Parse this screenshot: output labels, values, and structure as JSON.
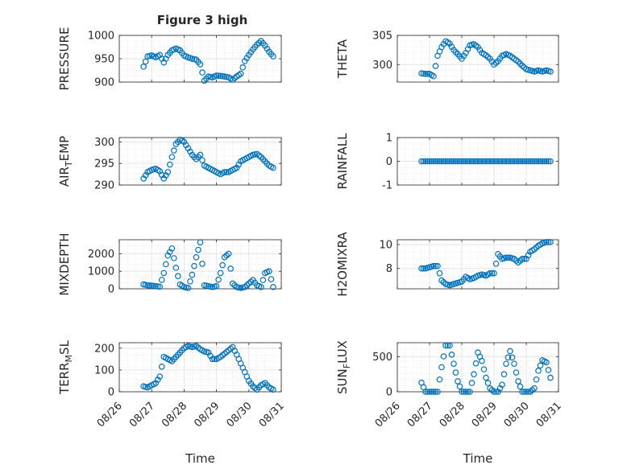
{
  "figure": {
    "title": "Figure 3 high"
  },
  "colors": {
    "marker": "#0072BD",
    "grid": "#d9d9d9",
    "axis": "#262626"
  },
  "chart_data": [
    {
      "id": "pressure",
      "type": "scatter",
      "title": "Figure 3 high",
      "ylabel": "PRESSURE",
      "ylim": [
        900,
        1000
      ],
      "yticks": [
        900,
        950,
        1000
      ],
      "ytick_labels": [
        "900",
        "950",
        "1000"
      ],
      "xlim": [
        "08/26",
        "08/31"
      ],
      "grid": "minor",
      "x": [
        "08/26 18:00",
        "08/26 21:00",
        "08/27 00:00",
        "08/27 03:00",
        "08/27 06:00",
        "08/27 09:00",
        "08/27 12:00",
        "08/27 15:00",
        "08/27 18:00",
        "08/27 21:00",
        "08/28 00:00",
        "08/28 03:00",
        "08/28 06:00",
        "08/28 09:00",
        "08/28 12:00",
        "08/28 15:00",
        "08/28 18:00",
        "08/28 21:00",
        "08/29 00:00",
        "08/29 03:00",
        "08/29 06:00",
        "08/29 09:00",
        "08/29 12:00",
        "08/29 15:00",
        "08/29 18:00",
        "08/29 21:00",
        "08/30 00:00",
        "08/30 03:00",
        "08/30 06:00",
        "08/30 09:00",
        "08/30 12:00",
        "08/30 15:00",
        "08/30 18:00"
      ],
      "y": [
        933,
        955,
        957,
        953,
        958,
        942,
        958,
        968,
        972,
        968,
        957,
        953,
        950,
        948,
        938,
        903,
        912,
        910,
        914,
        913,
        912,
        910,
        905,
        912,
        918,
        945,
        958,
        970,
        980,
        988,
        978,
        965,
        955
      ]
    },
    {
      "id": "theta",
      "type": "scatter",
      "ylabel": "THETA",
      "ylim": [
        297,
        305
      ],
      "yticks": [
        300,
        305
      ],
      "ytick_labels": [
        "300",
        "305"
      ],
      "xlim": [
        "08/26",
        "08/31"
      ],
      "grid": "minor",
      "x": [
        "08/26 18:00",
        "08/26 21:00",
        "08/27 00:00",
        "08/27 03:00",
        "08/27 06:00",
        "08/27 09:00",
        "08/27 12:00",
        "08/27 15:00",
        "08/27 18:00",
        "08/27 21:00",
        "08/28 00:00",
        "08/28 03:00",
        "08/28 06:00",
        "08/28 09:00",
        "08/28 12:00",
        "08/28 15:00",
        "08/28 18:00",
        "08/28 21:00",
        "08/29 00:00",
        "08/29 03:00",
        "08/29 06:00",
        "08/29 09:00",
        "08/29 12:00",
        "08/29 15:00",
        "08/29 18:00",
        "08/29 21:00",
        "08/30 00:00",
        "08/30 03:00",
        "08/30 06:00",
        "08/30 09:00",
        "08/30 12:00",
        "08/30 15:00",
        "08/30 18:00"
      ],
      "y": [
        298.5,
        298.4,
        298.4,
        298.0,
        301.5,
        303.0,
        304.0,
        303.6,
        302.5,
        301.8,
        301.0,
        302.0,
        303.3,
        303.5,
        303.0,
        302.0,
        301.6,
        301.0,
        300.0,
        300.6,
        301.5,
        301.8,
        301.5,
        301.0,
        300.5,
        299.8,
        299.2,
        299.0,
        298.8,
        299.0,
        298.8,
        299.0,
        298.8
      ]
    },
    {
      "id": "air_temp",
      "type": "scatter",
      "ylabel": "AIR_TEMP",
      "ylabel_main": "AIR",
      "ylabel_sub": "T",
      "ylabel_tail": "EMP",
      "ylim": [
        290,
        301
      ],
      "yticks": [
        290,
        295,
        300
      ],
      "ytick_labels": [
        "290",
        "295",
        "300"
      ],
      "xlim": [
        "08/26",
        "08/31"
      ],
      "grid": "minor",
      "x": [
        "08/26 18:00",
        "08/26 21:00",
        "08/27 00:00",
        "08/27 03:00",
        "08/27 06:00",
        "08/27 09:00",
        "08/27 12:00",
        "08/27 15:00",
        "08/27 18:00",
        "08/27 21:00",
        "08/28 00:00",
        "08/28 03:00",
        "08/28 06:00",
        "08/28 09:00",
        "08/28 12:00",
        "08/28 15:00",
        "08/28 18:00",
        "08/28 21:00",
        "08/29 00:00",
        "08/29 03:00",
        "08/29 06:00",
        "08/29 09:00",
        "08/29 12:00",
        "08/29 15:00",
        "08/29 18:00",
        "08/29 21:00",
        "08/30 00:00",
        "08/30 03:00",
        "08/30 06:00",
        "08/30 09:00",
        "08/30 12:00",
        "08/30 15:00",
        "08/30 18:00"
      ],
      "y": [
        291.5,
        293.0,
        293.5,
        293.8,
        293.2,
        291.5,
        293.0,
        296.5,
        299.5,
        300.5,
        300.0,
        298.5,
        297.0,
        296.0,
        297.0,
        294.5,
        294.0,
        293.5,
        293.0,
        292.5,
        293.0,
        293.0,
        293.5,
        294.0,
        295.5,
        296.0,
        296.5,
        297.0,
        297.2,
        296.5,
        295.5,
        294.5,
        294.0
      ]
    },
    {
      "id": "rainfall",
      "type": "scatter",
      "ylabel": "RAINFALL",
      "ylim": [
        -1,
        1
      ],
      "yticks": [
        -1,
        0,
        1
      ],
      "ytick_labels": [
        "-1",
        "0",
        "1"
      ],
      "xlim": [
        "08/26",
        "08/31"
      ],
      "grid": "minor",
      "x": [
        "08/26 18:00",
        "08/26 21:00",
        "08/27 00:00",
        "08/27 03:00",
        "08/27 06:00",
        "08/27 09:00",
        "08/27 12:00",
        "08/27 15:00",
        "08/27 18:00",
        "08/27 21:00",
        "08/28 00:00",
        "08/28 03:00",
        "08/28 06:00",
        "08/28 09:00",
        "08/28 12:00",
        "08/28 15:00",
        "08/28 18:00",
        "08/28 21:00",
        "08/29 00:00",
        "08/29 03:00",
        "08/29 06:00",
        "08/29 09:00",
        "08/29 12:00",
        "08/29 15:00",
        "08/29 18:00",
        "08/29 21:00",
        "08/30 00:00",
        "08/30 03:00",
        "08/30 06:00",
        "08/30 09:00",
        "08/30 12:00",
        "08/30 15:00",
        "08/30 18:00"
      ],
      "y": [
        0,
        0,
        0,
        0,
        0,
        0,
        0,
        0,
        0,
        0,
        0,
        0,
        0,
        0,
        0,
        0,
        0,
        0,
        0,
        0,
        0,
        0,
        0,
        0,
        0,
        0,
        0,
        0,
        0,
        0,
        0,
        0,
        0
      ]
    },
    {
      "id": "mixdepth",
      "type": "scatter",
      "ylabel": "MIXDEPTH",
      "ylim": [
        0,
        2800
      ],
      "yticks": [
        0,
        1000,
        2000
      ],
      "ytick_labels": [
        "0",
        "1000",
        "2000"
      ],
      "xlim": [
        "08/26",
        "08/31"
      ],
      "grid": "minor",
      "x": [
        "08/26 18:00",
        "08/26 21:00",
        "08/27 00:00",
        "08/27 03:00",
        "08/27 06:00",
        "08/27 09:00",
        "08/27 12:00",
        "08/27 15:00",
        "08/27 18:00",
        "08/27 21:00",
        "08/28 00:00",
        "08/28 03:00",
        "08/28 06:00",
        "08/28 09:00",
        "08/28 12:00",
        "08/28 15:00",
        "08/28 18:00",
        "08/28 21:00",
        "08/29 00:00",
        "08/29 03:00",
        "08/29 06:00",
        "08/29 09:00",
        "08/29 12:00",
        "08/29 15:00",
        "08/29 18:00",
        "08/29 21:00",
        "08/30 00:00",
        "08/30 03:00",
        "08/30 06:00",
        "08/30 09:00",
        "08/30 12:00",
        "08/30 15:00",
        "08/30 18:00"
      ],
      "y": [
        250,
        200,
        180,
        150,
        120,
        900,
        1900,
        2300,
        1200,
        250,
        100,
        50,
        800,
        1800,
        2650,
        200,
        150,
        100,
        150,
        900,
        1800,
        2000,
        300,
        100,
        50,
        100,
        300,
        500,
        200,
        100,
        900,
        1000,
        100
      ]
    },
    {
      "id": "h2omixra",
      "type": "scatter",
      "ylabel": "H2OMIXRA",
      "ylim": [
        6.3,
        10.4
      ],
      "yticks": [
        8,
        10
      ],
      "ytick_labels": [
        "8",
        "10"
      ],
      "xlim": [
        "08/26",
        "08/31"
      ],
      "grid": "minor",
      "x": [
        "08/26 18:00",
        "08/26 21:00",
        "08/27 00:00",
        "08/27 03:00",
        "08/27 06:00",
        "08/27 09:00",
        "08/27 12:00",
        "08/27 15:00",
        "08/27 18:00",
        "08/27 21:00",
        "08/28 00:00",
        "08/28 03:00",
        "08/28 06:00",
        "08/28 09:00",
        "08/28 12:00",
        "08/28 15:00",
        "08/28 18:00",
        "08/28 21:00",
        "08/29 00:00",
        "08/29 03:00",
        "08/29 06:00",
        "08/29 09:00",
        "08/29 12:00",
        "08/29 15:00",
        "08/29 18:00",
        "08/29 21:00",
        "08/30 00:00",
        "08/30 03:00",
        "08/30 06:00",
        "08/30 09:00",
        "08/30 12:00",
        "08/30 15:00",
        "08/30 18:00"
      ],
      "y": [
        8.0,
        8.0,
        8.1,
        8.2,
        8.2,
        7.0,
        6.7,
        6.6,
        6.7,
        6.8,
        6.9,
        7.3,
        7.1,
        7.2,
        7.4,
        7.5,
        7.4,
        7.6,
        7.6,
        9.2,
        8.8,
        8.9,
        8.9,
        8.8,
        8.5,
        8.8,
        8.8,
        9.4,
        9.6,
        9.9,
        10.1,
        10.2,
        10.2
      ]
    },
    {
      "id": "terr_msl",
      "type": "scatter",
      "ylabel": "TERR_MSL",
      "ylabel_main": "TERR",
      "ylabel_sub": "M",
      "ylabel_tail": "SL",
      "ylim": [
        0,
        225
      ],
      "yticks": [
        0,
        100,
        200
      ],
      "ytick_labels": [
        "0",
        "100",
        "200"
      ],
      "xlim": [
        "08/26",
        "08/31"
      ],
      "grid": "minor",
      "x": [
        "08/26 18:00",
        "08/26 21:00",
        "08/27 00:00",
        "08/27 03:00",
        "08/27 06:00",
        "08/27 09:00",
        "08/27 12:00",
        "08/27 15:00",
        "08/27 18:00",
        "08/27 21:00",
        "08/28 00:00",
        "08/28 03:00",
        "08/28 06:00",
        "08/28 09:00",
        "08/28 12:00",
        "08/28 15:00",
        "08/28 18:00",
        "08/28 21:00",
        "08/29 00:00",
        "08/29 03:00",
        "08/29 06:00",
        "08/29 09:00",
        "08/29 12:00",
        "08/29 15:00",
        "08/29 18:00",
        "08/29 21:00",
        "08/30 00:00",
        "08/30 03:00",
        "08/30 06:00",
        "08/30 09:00",
        "08/30 12:00",
        "08/30 15:00",
        "08/30 18:00"
      ],
      "y": [
        25,
        20,
        30,
        40,
        70,
        160,
        150,
        140,
        160,
        180,
        200,
        210,
        205,
        210,
        195,
        185,
        180,
        150,
        150,
        160,
        175,
        190,
        205,
        170,
        130,
        90,
        50,
        25,
        10,
        30,
        40,
        20,
        10
      ]
    },
    {
      "id": "sun_flux",
      "type": "scatter",
      "ylabel": "SUN_FLUX",
      "ylabel_main": "SUN",
      "ylabel_sub": "F",
      "ylabel_tail": "LUX",
      "ylim": [
        0,
        700
      ],
      "yticks": [
        0,
        500
      ],
      "ytick_labels": [
        "0",
        "500"
      ],
      "xlim": [
        "08/26",
        "08/31"
      ],
      "grid": "minor",
      "x": [
        "08/26 18:00",
        "08/26 21:00",
        "08/27 00:00",
        "08/27 03:00",
        "08/27 06:00",
        "08/27 09:00",
        "08/27 12:00",
        "08/27 15:00",
        "08/27 18:00",
        "08/27 21:00",
        "08/28 00:00",
        "08/28 03:00",
        "08/28 06:00",
        "08/28 09:00",
        "08/28 12:00",
        "08/28 15:00",
        "08/28 18:00",
        "08/28 21:00",
        "08/29 00:00",
        "08/29 03:00",
        "08/29 06:00",
        "08/29 09:00",
        "08/29 12:00",
        "08/29 15:00",
        "08/29 18:00",
        "08/29 21:00",
        "08/30 00:00",
        "08/30 03:00",
        "08/30 06:00",
        "08/30 09:00",
        "08/30 12:00",
        "08/30 15:00",
        "08/30 18:00"
      ],
      "y": [
        130,
        0,
        0,
        0,
        0,
        350,
        660,
        660,
        400,
        150,
        0,
        0,
        0,
        250,
        560,
        440,
        200,
        50,
        0,
        0,
        100,
        400,
        580,
        400,
        150,
        0,
        0,
        0,
        50,
        300,
        450,
        420,
        200
      ]
    }
  ],
  "xaxis": {
    "ticks": [
      "08/26",
      "08/27",
      "08/28",
      "08/29",
      "08/30",
      "08/31"
    ],
    "label": "Time"
  }
}
